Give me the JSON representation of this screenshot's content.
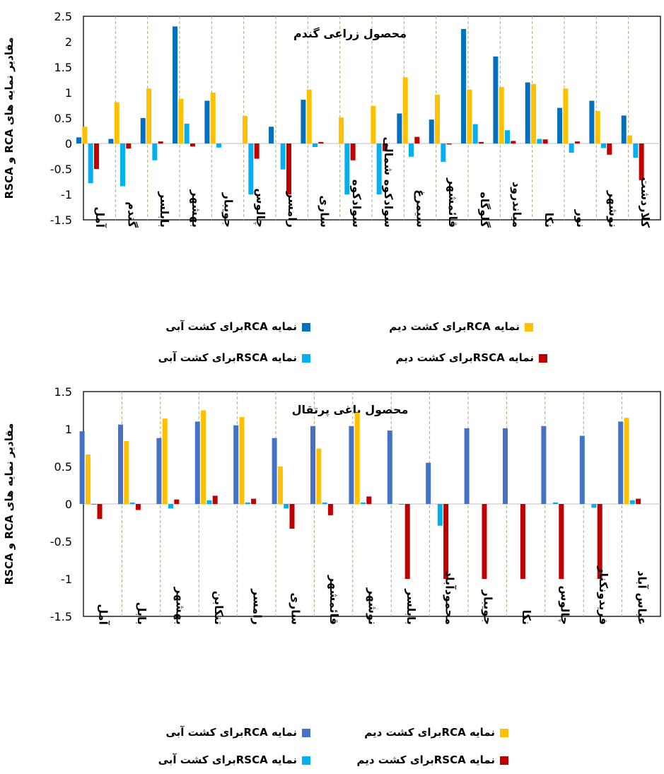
{
  "chart_data": [
    {
      "type": "bar",
      "title": "محصول زراعی گندم",
      "ylabel": "مقادیر نمایه های RCA و RSCA",
      "ylim": [
        -1.5,
        2.5
      ],
      "yticks": [
        2.5,
        2,
        1.5,
        1,
        0.5,
        0,
        -0.5,
        -1,
        -1.5
      ],
      "categories": [
        "آمل",
        "گندم",
        "بابلسر",
        "بهشهر",
        "جویبار",
        "چالوس",
        "رامسر",
        "ساری",
        "سوادکوه",
        "سوادکوه شمالی",
        "سیمرغ",
        "قائمشهر",
        "گلوگاه",
        "میاندرود",
        "نکا",
        "نور",
        "نوشهر",
        "کلاردشت"
      ],
      "series": [
        {
          "name": "نمایه RCA برای کشت آبی",
          "color": "#0070C0",
          "values": [
            0.12,
            0.09,
            0.5,
            2.3,
            0.84,
            0,
            0.33,
            0.86,
            0,
            0,
            0.59,
            0.47,
            2.25,
            1.71,
            1.2,
            0.7,
            0.84,
            0.55
          ]
        },
        {
          "name": "نمایه RCA برای کشت دیم",
          "color": "#FFC000",
          "values": [
            0.33,
            0.81,
            1.08,
            0.88,
            1.0,
            0.54,
            0,
            1.06,
            0.51,
            0.74,
            1.3,
            0.96,
            1.06,
            1.11,
            1.17,
            1.08,
            0.64,
            0.16
          ]
        },
        {
          "name": "نمایه RSCA برای کشت آبی",
          "color": "#00B0F0",
          "values": [
            -0.78,
            -0.84,
            -0.33,
            0.39,
            -0.08,
            -1.0,
            -0.51,
            -0.07,
            -1.0,
            -1.0,
            -0.26,
            -0.36,
            0.38,
            0.26,
            0.09,
            -0.18,
            -0.09,
            -0.28
          ]
        },
        {
          "name": "نمایه RSCA برای کشت دیم",
          "color": "#C00000",
          "values": [
            -0.5,
            -0.1,
            0.04,
            -0.06,
            0,
            -0.3,
            -1.0,
            0.03,
            -0.33,
            -0.15,
            0.13,
            -0.02,
            0.03,
            0.05,
            0.08,
            0.04,
            -0.22,
            -0.72
          ]
        }
      ],
      "legend": [
        [
          "نمایه",
          "RCA",
          "برای کشت آبی"
        ],
        [
          "نمایه",
          "RCA",
          "برای کشت دیم"
        ],
        [
          "نمایه",
          "RSCA",
          "برای کشت آبی"
        ],
        [
          "نمایه",
          "RSCA",
          "برای کشت دیم"
        ]
      ],
      "legend_placement": "bottom",
      "grid": false
    },
    {
      "type": "bar",
      "title": "محصول باغی پرتقال",
      "ylabel": "مقادیر نمایه های RCA و RSCA",
      "ylim": [
        -1.5,
        1.5
      ],
      "yticks": [
        1.5,
        1,
        0.5,
        0,
        -0.5,
        -1,
        -1.5
      ],
      "categories": [
        "آمل",
        "بابل",
        "بهشهر",
        "تنکابن",
        "رامسر",
        "ساری",
        "قائمشهر",
        "نوشهر",
        "بابلسر",
        "محمودآباد",
        "جویبار",
        "نکا",
        "چالوس",
        "فریدونکنار",
        "عباس آباد"
      ],
      "series": [
        {
          "name": "نمایه RCA برای کشت آبی",
          "color": "#4472C4",
          "values": [
            0.97,
            1.06,
            0.88,
            1.1,
            1.05,
            0.88,
            1.04,
            1.04,
            0.98,
            0.55,
            1.01,
            1.01,
            1.04,
            0.91,
            1.1
          ]
        },
        {
          "name": "نمایه RCA برای کشت دیم",
          "color": "#FFC000",
          "values": [
            0.66,
            0.84,
            1.14,
            1.25,
            1.16,
            0.5,
            0.74,
            1.22,
            0,
            0,
            0,
            0,
            0,
            0,
            1.15
          ]
        },
        {
          "name": "نمایه RSCA برای کشت آبی",
          "color": "#00B0F0",
          "values": [
            -0.01,
            0.02,
            -0.06,
            0.05,
            0.02,
            -0.06,
            0.02,
            0.02,
            -0.01,
            -0.29,
            0,
            0,
            0.02,
            -0.05,
            0.05
          ]
        },
        {
          "name": "نمایه RSCA برای کشت دیم",
          "color": "#C00000",
          "values": [
            -0.2,
            -0.08,
            0.06,
            0.11,
            0.07,
            -0.33,
            -0.15,
            0.1,
            -1.0,
            -1.0,
            -1.0,
            -1.0,
            -1.0,
            -1.0,
            0.07
          ]
        }
      ],
      "legend": [
        [
          "نمایه",
          "RCA",
          "برای کشت آبی"
        ],
        [
          "نمایه",
          "RCA",
          "برای کشت دیم"
        ],
        [
          "نمایه",
          "RSCA",
          "برای کشت آبی"
        ],
        [
          "نمایه",
          "RSCA",
          "برای کشت دیم"
        ]
      ],
      "legend_placement": "bottom",
      "grid": false
    }
  ]
}
